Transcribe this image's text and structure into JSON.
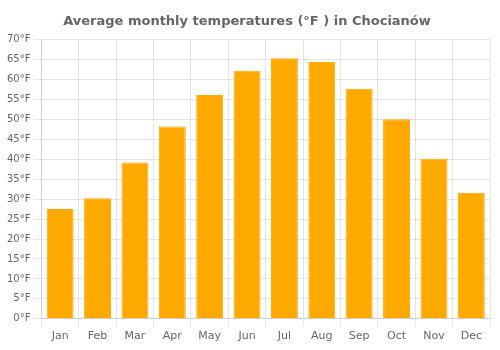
{
  "chart_data": {
    "type": "bar",
    "title": "Average monthly temperatures (°F ) in Chocianów",
    "categories": [
      "Jan",
      "Feb",
      "Mar",
      "Apr",
      "May",
      "Jun",
      "Jul",
      "Aug",
      "Sep",
      "Oct",
      "Nov",
      "Dec"
    ],
    "values": [
      27.5,
      30.2,
      39.2,
      48.2,
      56.1,
      62.2,
      65.3,
      64.4,
      57.7,
      50.0,
      40.1,
      31.6
    ],
    "color": "#FFAA00",
    "ylim": [
      0,
      70
    ],
    "yticks": [
      {
        "value": 0,
        "label": "0°F"
      },
      {
        "value": 5,
        "label": "5°F"
      },
      {
        "value": 10,
        "label": "10°F"
      },
      {
        "value": 15,
        "label": "15°F"
      },
      {
        "value": 20,
        "label": "20°F"
      },
      {
        "value": 25,
        "label": "25°F"
      },
      {
        "value": 30,
        "label": "30°F"
      },
      {
        "value": 35,
        "label": "35°F"
      },
      {
        "value": 40,
        "label": "40°F"
      },
      {
        "value": 45,
        "label": "45°F"
      },
      {
        "value": 50,
        "label": "50°F"
      },
      {
        "value": 55,
        "label": "55°F"
      },
      {
        "value": 60,
        "label": "60°F"
      },
      {
        "value": 65,
        "label": "65°F"
      },
      {
        "value": 70,
        "label": "70°F"
      }
    ],
    "grid": true
  }
}
